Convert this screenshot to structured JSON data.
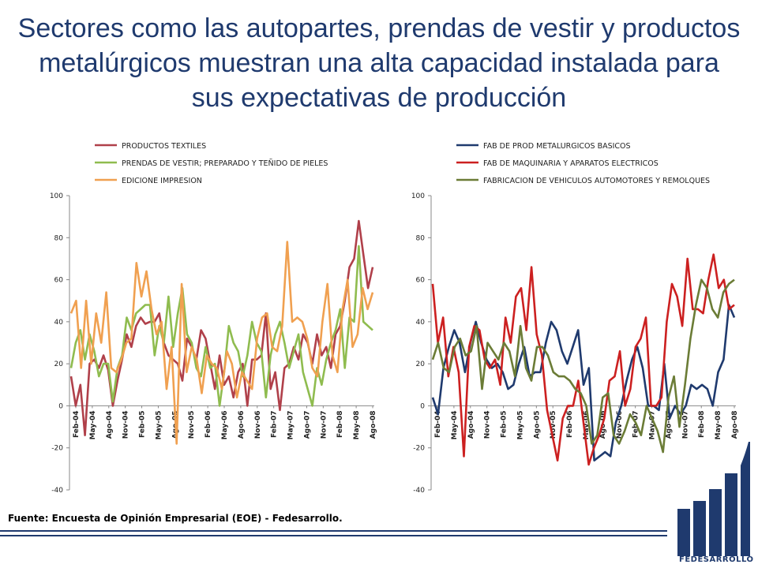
{
  "slide": {
    "title": "Sectores como las autopartes, prendas de vestir y productos metalúrgicos muestran una alta capacidad instalada para sus expectativas de producción",
    "source": "Fuente: Encuesta de Opinión Empresarial (EOE) - Fedesarrollo.",
    "logo_text": "FEDESARROLLO"
  },
  "chart_data": [
    {
      "type": "line",
      "ylim": [
        -40,
        100
      ],
      "yticks": [
        -40,
        -20,
        0,
        20,
        40,
        60,
        80,
        100
      ],
      "x_tick_labels": [
        "Feb-04",
        "May-04",
        "Ago-04",
        "Nov-04",
        "Feb-05",
        "May-05",
        "Ago-05",
        "Nov-05",
        "Feb-06",
        "May-06",
        "Ago-06",
        "Nov-06",
        "Feb-07",
        "May-07",
        "Ago-07",
        "Nov-07",
        "Feb-08",
        "May-08",
        "Ago-08"
      ],
      "legend_position": "top",
      "series": [
        {
          "name": "PRODUCTOS TEXTILES",
          "color": "#b0404a",
          "values": [
            14,
            0,
            10,
            -14,
            20,
            22,
            18,
            24,
            17,
            0,
            12,
            22,
            34,
            28,
            38,
            42,
            39,
            40,
            40,
            44,
            30,
            24,
            22,
            20,
            12,
            32,
            28,
            22,
            36,
            32,
            20,
            8,
            24,
            10,
            14,
            4,
            16,
            20,
            0,
            22,
            22,
            24,
            44,
            8,
            16,
            -2,
            18,
            20,
            28,
            22,
            34,
            30,
            20,
            34,
            24,
            28,
            18,
            34,
            38,
            50,
            66,
            70,
            88,
            72,
            56,
            66
          ]
        },
        {
          "name": "PRENDAS DE VESTIR; PREPARADO Y TEÑIDO DE PIELES",
          "color": "#8fbc4f",
          "values": [
            18,
            30,
            36,
            22,
            34,
            26,
            14,
            20,
            20,
            2,
            18,
            24,
            42,
            36,
            44,
            46,
            48,
            48,
            24,
            38,
            30,
            52,
            28,
            44,
            56,
            34,
            30,
            18,
            14,
            28,
            18,
            20,
            0,
            16,
            38,
            30,
            26,
            14,
            24,
            40,
            30,
            26,
            4,
            24,
            34,
            40,
            30,
            18,
            26,
            34,
            16,
            8,
            0,
            18,
            10,
            22,
            30,
            36,
            46,
            18,
            42,
            40,
            76,
            40,
            38,
            36
          ]
        },
        {
          "name": "EDICIONE IMPRESION",
          "color": "#f0a050",
          "values": [
            44,
            50,
            18,
            50,
            20,
            44,
            30,
            54,
            18,
            16,
            22,
            30,
            32,
            68,
            52,
            64,
            46,
            34,
            40,
            8,
            28,
            -18,
            58,
            16,
            28,
            22,
            6,
            24,
            20,
            18,
            8,
            26,
            20,
            4,
            16,
            12,
            8,
            32,
            42,
            44,
            28,
            26,
            38,
            78,
            40,
            42,
            40,
            32,
            18,
            14,
            40,
            58,
            24,
            16,
            46,
            60,
            28,
            34,
            56,
            46,
            54
          ]
        }
      ]
    },
    {
      "type": "line",
      "ylim": [
        -40,
        100
      ],
      "yticks": [
        -40,
        -20,
        0,
        20,
        40,
        60,
        80,
        100
      ],
      "x_tick_labels": [
        "Feb-04",
        "May-04",
        "Ago-04",
        "Nov-04",
        "Feb-05",
        "May-05",
        "Ago-05",
        "Nov-05",
        "Feb-06",
        "May-06",
        "Ago-06",
        "Nov-06",
        "Feb-07",
        "May-07",
        "Ago-07",
        "Nov-07",
        "Feb-08",
        "May-08",
        "Ago-08"
      ],
      "legend_position": "top",
      "series": [
        {
          "name": "FAB DE PROD METALURGICOS BASICOS",
          "color": "#1f3a6e",
          "values": [
            4,
            -4,
            18,
            28,
            36,
            30,
            16,
            30,
            40,
            30,
            22,
            18,
            20,
            16,
            8,
            10,
            20,
            28,
            14,
            16,
            16,
            30,
            40,
            36,
            26,
            20,
            28,
            36,
            10,
            18,
            -26,
            -24,
            -22,
            -24,
            -8,
            0,
            12,
            22,
            28,
            18,
            0,
            0,
            -2,
            20,
            -6,
            0,
            -4,
            0,
            10,
            8,
            10,
            8,
            0,
            16,
            22,
            48,
            42
          ]
        },
        {
          "name": "FAB DE MAQUINARIA Y APARATOS ELECTRICOS",
          "color": "#cc2020",
          "values": [
            58,
            30,
            42,
            14,
            28,
            16,
            -24,
            28,
            38,
            36,
            22,
            18,
            22,
            10,
            42,
            30,
            52,
            56,
            36,
            66,
            34,
            24,
            -2,
            -14,
            -26,
            -6,
            0,
            0,
            12,
            -8,
            -28,
            -20,
            -14,
            -6,
            12,
            14,
            26,
            0,
            8,
            28,
            32,
            42,
            0,
            0,
            4,
            40,
            58,
            52,
            38,
            70,
            46,
            46,
            44,
            60,
            72,
            56,
            60,
            46,
            48
          ]
        },
        {
          "name": "FABRICACION DE VEHICULOS AUTOMOTORES Y REMOLQUES",
          "color": "#6b7c36",
          "values": [
            22,
            30,
            18,
            16,
            28,
            32,
            24,
            26,
            38,
            8,
            30,
            26,
            22,
            30,
            26,
            14,
            38,
            18,
            12,
            28,
            28,
            24,
            16,
            14,
            14,
            12,
            8,
            6,
            0,
            -18,
            -14,
            4,
            6,
            -14,
            -18,
            -12,
            -4,
            -8,
            -14,
            0,
            -6,
            -12,
            -22,
            4,
            14,
            -10,
            10,
            32,
            48,
            60,
            56,
            46,
            42,
            54,
            58,
            60
          ]
        }
      ]
    }
  ]
}
